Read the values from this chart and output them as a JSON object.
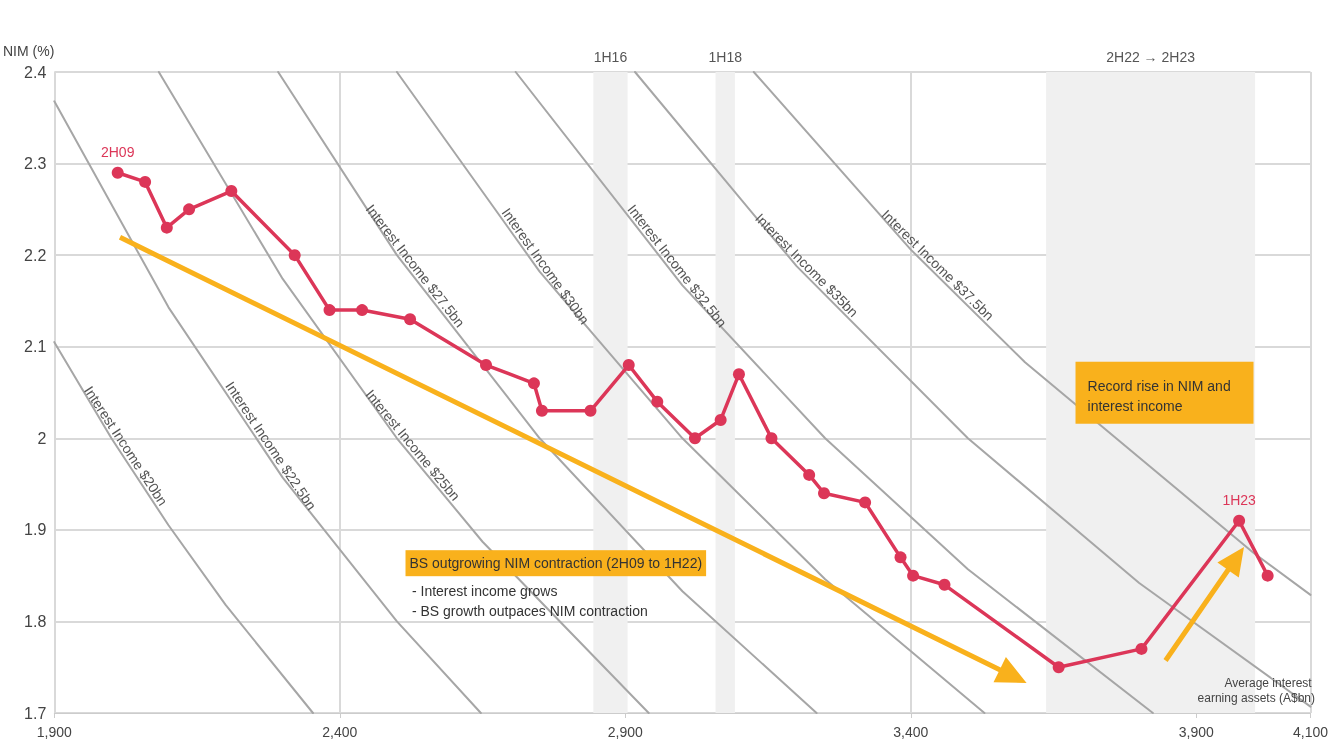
{
  "chart_data": {
    "type": "line",
    "xlabel": "Average interest earning assets (A$bn)",
    "ylabel": "NIM (%)",
    "xlim": [
      1900,
      4100
    ],
    "xticks": [
      {
        "value": 1900,
        "label": "1,900"
      },
      {
        "value": 2400,
        "label": "2,400"
      },
      {
        "value": 2900,
        "label": "2,900"
      },
      {
        "value": 3400,
        "label": "3,400"
      },
      {
        "value": 3900,
        "label": "3,900"
      },
      {
        "value": 4100,
        "label": "4,100"
      }
    ],
    "ylim": [
      1.7,
      2.4
    ],
    "yticks": [
      1.7,
      1.8,
      1.9,
      2,
      2.1,
      2.2,
      2.3,
      2.4
    ],
    "grid": true,
    "legend": false,
    "marker": "circle",
    "line_style": "solid",
    "series": [
      {
        "color": "#dc3658",
        "x": [
          2011,
          2059,
          2097,
          2136,
          2210,
          2321,
          2382,
          2439,
          2523,
          2656,
          2740,
          2754,
          2839,
          2906,
          2956,
          3022,
          3067,
          3099,
          3156,
          3222,
          3248,
          3320,
          3382,
          3404,
          3459,
          3659,
          3804,
          3975,
          4025
        ],
        "values": [
          2.29,
          2.28,
          2.23,
          2.25,
          2.27,
          2.2,
          2.14,
          2.14,
          2.13,
          2.08,
          2.06,
          2.03,
          2.03,
          2.08,
          2.04,
          2.0,
          2.02,
          2.07,
          2.0,
          1.96,
          1.94,
          1.93,
          1.87,
          1.85,
          1.84,
          1.75,
          1.77,
          1.91,
          1.85
        ]
      },
      {
        "name": "Interest Income $20bn",
        "color": "#a6a6a6",
        "marker": "none",
        "x": [
          1900,
          2000,
          2100,
          2200,
          2353
        ],
        "values": [
          2.105,
          2.0,
          1.905,
          1.818,
          1.7
        ]
      },
      {
        "name": "Interest Income $22.5bn",
        "color": "#a6a6a6",
        "marker": "none",
        "x": [
          1900,
          2100,
          2300,
          2500,
          2647
        ],
        "values": [
          2.368,
          2.143,
          1.957,
          1.8,
          1.7
        ]
      },
      {
        "name": "Interest Income $25bn",
        "color": "#a6a6a6",
        "marker": "none",
        "x": [
          2083,
          2300,
          2500,
          2650,
          2941
        ],
        "values": [
          2.4,
          2.174,
          2.0,
          1.887,
          1.7
        ]
      },
      {
        "name": "Interest Income $27.5bn",
        "color": "#a6a6a6",
        "marker": "none",
        "x": [
          2292,
          2500,
          2750,
          3000,
          3235
        ],
        "values": [
          2.4,
          2.2,
          2.0,
          1.833,
          1.7
        ]
      },
      {
        "name": "Interest Income $30bn",
        "color": "#a6a6a6",
        "marker": "none",
        "x": [
          2500,
          2750,
          3000,
          3250,
          3529
        ],
        "values": [
          2.4,
          2.182,
          2.0,
          1.846,
          1.7
        ]
      },
      {
        "name": "Interest Income $32.5bn",
        "color": "#a6a6a6",
        "marker": "none",
        "x": [
          2708,
          3000,
          3250,
          3500,
          3824
        ],
        "values": [
          2.4,
          2.167,
          2.0,
          1.857,
          1.7
        ]
      },
      {
        "name": "Interest Income $35bn",
        "color": "#a6a6a6",
        "marker": "none",
        "x": [
          2917,
          3200,
          3500,
          3800,
          4100
        ],
        "values": [
          2.4,
          2.188,
          2.0,
          1.842,
          1.707
        ]
      },
      {
        "name": "Interest Income $37.5bn",
        "color": "#a6a6a6",
        "marker": "none",
        "x": [
          3125,
          3400,
          3600,
          4000,
          4100
        ],
        "values": [
          2.4,
          2.206,
          2.083,
          1.875,
          1.829
        ]
      }
    ],
    "bands": [
      {
        "axis": "x",
        "from": 2844,
        "to": 2904,
        "label": "1H16",
        "color": "#f0f0f0"
      },
      {
        "axis": "x",
        "from": 3058,
        "to": 3092,
        "label": "1H18",
        "color": "#f0f0f0"
      },
      {
        "axis": "x",
        "from": 3637,
        "to": 4003,
        "label": "2H22 → 2H23",
        "color": "#f0f0f0"
      }
    ],
    "annotations": [
      {
        "text": "2H09",
        "x": 2011,
        "y": 2.29
      },
      {
        "text": "1H23",
        "x": 3975,
        "y": 1.91
      },
      "Record rise in NIM and interest income",
      "BS outgrowing NIM contraction (2H09 to 1H22)",
      "- Interest income grows",
      "- BS growth outpaces NIM contraction"
    ]
  }
}
